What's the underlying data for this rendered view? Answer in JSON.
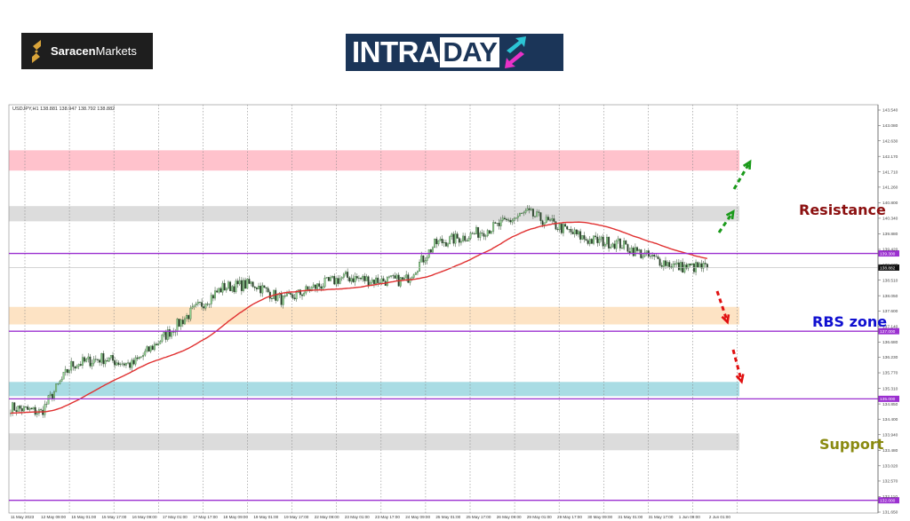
{
  "logos": {
    "saracen": {
      "bold": "Saracen",
      "regular": "Markets"
    },
    "intraday": {
      "part1": "INTRA",
      "part2": "DAY"
    }
  },
  "colors": {
    "resistance_text": "#8b0f0f",
    "rbs_text": "#1010d0",
    "support_text": "#8a8a10",
    "level_line": "#9b30d0",
    "ma_line": "#e03030",
    "bull_arrow": "#1a9a1a",
    "bear_arrow": "#e01010"
  },
  "chart_data": {
    "type": "candlestick",
    "header": "USDJPY,H1  138.881 138.947 138.792 138.882",
    "symbol": "USDJPY",
    "timeframe": "H1",
    "ohlc_last": {
      "open": 138.881,
      "high": 138.947,
      "low": 138.792,
      "close": 138.882
    },
    "ylim": [
      131.65,
      143.54
    ],
    "y_ticks": [
      "143.540",
      "143.080",
      "142.630",
      "142.170",
      "141.710",
      "141.260",
      "140.800",
      "140.340",
      "139.880",
      "139.420",
      "138.970",
      "138.510",
      "138.050",
      "137.600",
      "137.140",
      "136.680",
      "136.230",
      "135.770",
      "135.310",
      "134.850",
      "134.400",
      "133.940",
      "133.480",
      "133.020",
      "132.570",
      "132.110",
      "131.650"
    ],
    "x_ticks": [
      "11 May 2023",
      "12 May 09:00",
      "15 May 01:00",
      "15 May 17:00",
      "16 May 09:00",
      "17 May 01:00",
      "17 May 17:00",
      "18 May 09:00",
      "19 May 01:00",
      "19 May 17:00",
      "22 May 09:00",
      "23 May 01:00",
      "23 May 17:00",
      "24 May 09:00",
      "25 May 01:00",
      "25 May 17:00",
      "26 May 09:00",
      "29 May 01:00",
      "29 May 17:00",
      "30 May 09:00",
      "31 May 01:00",
      "31 May 17:00",
      "1 Jun 09:00",
      "2 Jun 01:00"
    ],
    "close_path": [
      {
        "t": "11 May 2023",
        "close": 134.75
      },
      {
        "t": "12 May 09:00",
        "close": 134.6
      },
      {
        "t": "15 May 01:00",
        "close": 136.0
      },
      {
        "t": "15 May 17:00",
        "close": 136.2
      },
      {
        "t": "16 May 09:00",
        "close": 136.0
      },
      {
        "t": "17 May 01:00",
        "close": 136.8
      },
      {
        "t": "17 May 17:00",
        "close": 137.6
      },
      {
        "t": "18 May 09:00",
        "close": 138.3
      },
      {
        "t": "19 May 01:00",
        "close": 138.4
      },
      {
        "t": "19 May 17:00",
        "close": 137.9
      },
      {
        "t": "22 May 09:00",
        "close": 138.3
      },
      {
        "t": "23 May 01:00",
        "close": 138.6
      },
      {
        "t": "23 May 17:00",
        "close": 138.5
      },
      {
        "t": "24 May 09:00",
        "close": 138.5
      },
      {
        "t": "25 May 01:00",
        "close": 139.6
      },
      {
        "t": "25 May 17:00",
        "close": 139.8
      },
      {
        "t": "26 May 09:00",
        "close": 140.1
      },
      {
        "t": "29 May 01:00",
        "close": 140.5
      },
      {
        "t": "29 May 17:00",
        "close": 140.1
      },
      {
        "t": "30 May 09:00",
        "close": 139.7
      },
      {
        "t": "31 May 01:00",
        "close": 139.6
      },
      {
        "t": "31 May 17:00",
        "close": 139.2
      },
      {
        "t": "1 Jun 09:00",
        "close": 138.9
      },
      {
        "t": "2 Jun 01:00",
        "close": 138.882
      }
    ],
    "current_price": "138.882",
    "levels": [
      {
        "price": 139.3,
        "label": "139.300"
      },
      {
        "price": 137.0,
        "label": "137.000"
      },
      {
        "price": 135.0,
        "label": "135.000"
      },
      {
        "price": 132.0,
        "label": "132.000"
      }
    ],
    "zones": [
      {
        "from": 141.75,
        "to": 142.35,
        "color": "#ffc2cc"
      },
      {
        "from": 140.25,
        "to": 140.7,
        "color": "#dcdcdc"
      },
      {
        "from": 137.2,
        "to": 137.72,
        "color": "#fde3c4"
      },
      {
        "from": 135.08,
        "to": 135.5,
        "color": "#a9dce4"
      },
      {
        "from": 133.48,
        "to": 133.98,
        "color": "#dcdcdc"
      }
    ],
    "moving_average": {
      "color": "#e03030"
    },
    "annotations": {
      "resistance": "Resistance",
      "rbs": "RBS zone",
      "support": "Support"
    }
  }
}
